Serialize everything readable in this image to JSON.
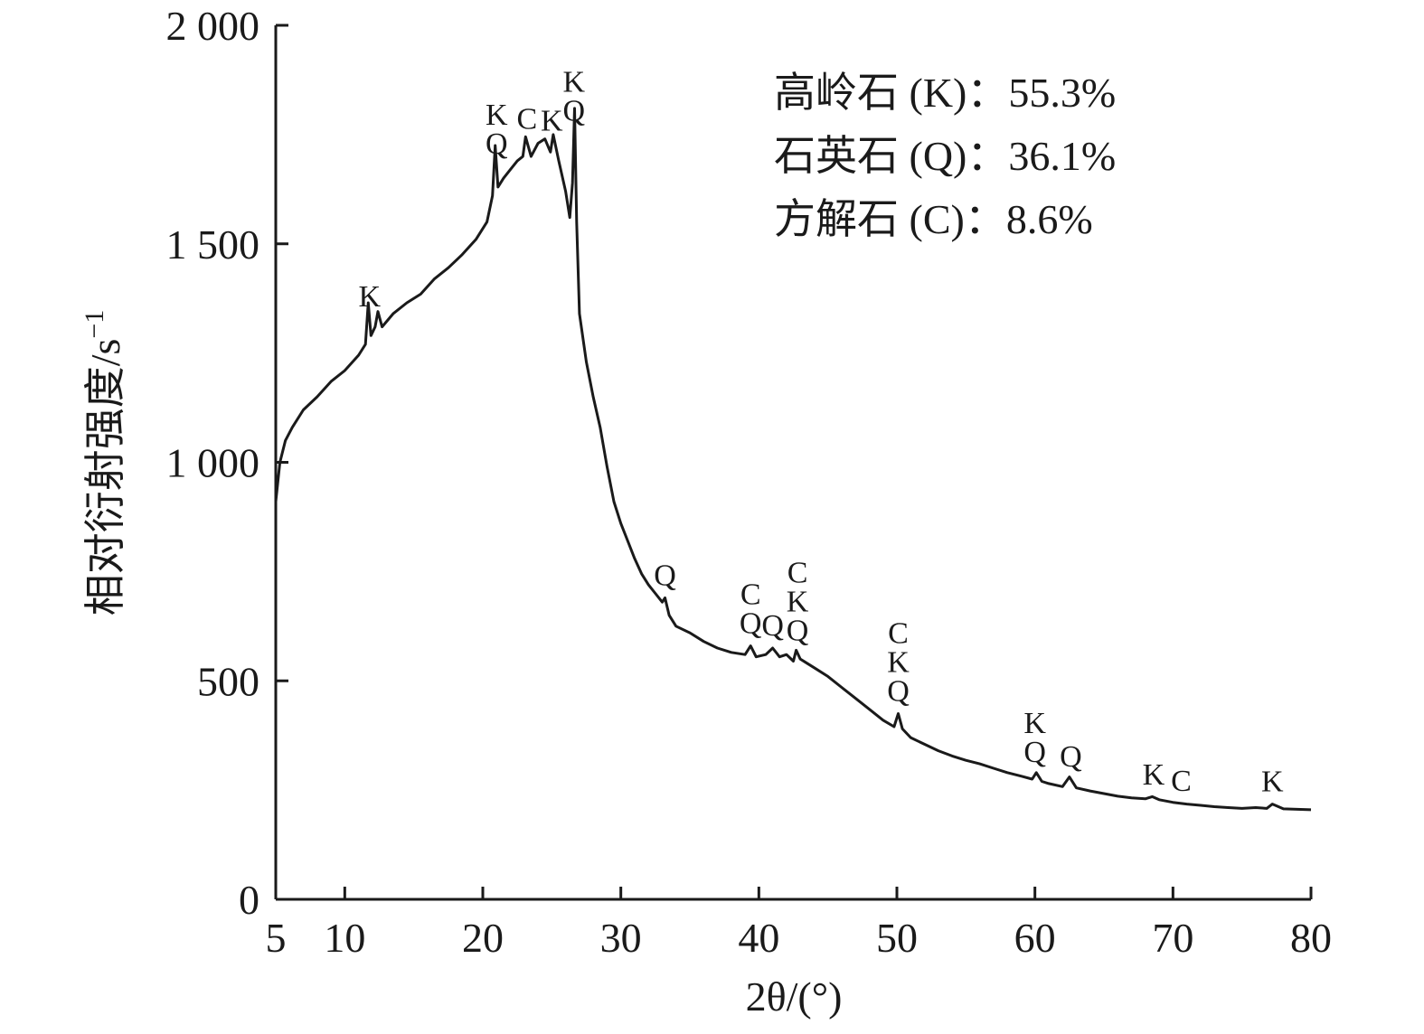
{
  "chart_data": {
    "type": "line",
    "xlabel": "2θ/(°)",
    "ylabel_main": "相对衍射强度/s",
    "ylabel_sup": "−1",
    "xlim": [
      5,
      80
    ],
    "ylim": [
      0,
      2000
    ],
    "x_ticks": [
      {
        "value": 5,
        "label": "5"
      },
      {
        "value": 10,
        "label": "10"
      },
      {
        "value": 20,
        "label": "20"
      },
      {
        "value": 30,
        "label": "30"
      },
      {
        "value": 40,
        "label": "40"
      },
      {
        "value": 50,
        "label": "50"
      },
      {
        "value": 60,
        "label": "60"
      },
      {
        "value": 70,
        "label": "70"
      },
      {
        "value": 80,
        "label": "80"
      }
    ],
    "y_ticks": [
      {
        "value": 0,
        "label": "0"
      },
      {
        "value": 500,
        "label": "500"
      },
      {
        "value": 1000,
        "label": "1 000"
      },
      {
        "value": 1500,
        "label": "1 500"
      },
      {
        "value": 2000,
        "label": "2 000"
      }
    ],
    "grid": false,
    "legend_position": "top-right",
    "composition": [
      "高岭石 (K)：55.3%",
      "石英石 (Q)：36.1%",
      "方解石 (C)：8.6%"
    ],
    "series": [
      {
        "color": "#1a1a1a",
        "x": [
          5.0,
          5.3,
          5.7,
          6.2,
          7.0,
          8.0,
          9.0,
          10.0,
          11.0,
          11.5,
          11.7,
          11.9,
          12.2,
          12.4,
          12.7,
          13.5,
          14.5,
          15.5,
          16.5,
          17.5,
          18.5,
          19.5,
          20.3,
          20.7,
          20.9,
          21.1,
          21.5,
          22.0,
          22.5,
          22.9,
          23.1,
          23.5,
          24.0,
          24.5,
          24.9,
          25.1,
          25.5,
          26.0,
          26.3,
          26.5,
          26.65,
          26.8,
          27.0,
          27.5,
          28.0,
          28.5,
          29.0,
          29.5,
          30.0,
          30.5,
          31.0,
          31.5,
          32.0,
          32.5,
          33.0,
          33.2,
          33.5,
          34.0,
          35.0,
          36.0,
          37.0,
          38.0,
          39.0,
          39.4,
          39.8,
          40.5,
          41.0,
          41.5,
          42.0,
          42.5,
          42.7,
          43.0,
          44.0,
          45.0,
          46.0,
          47.0,
          48.0,
          49.0,
          49.8,
          50.1,
          50.4,
          51.0,
          52.0,
          53.0,
          54.0,
          55.0,
          56.0,
          57.0,
          58.0,
          59.0,
          59.8,
          60.1,
          60.5,
          61.0,
          62.0,
          62.5,
          63.0,
          64.0,
          65.0,
          66.0,
          67.0,
          68.0,
          68.5,
          69.0,
          70.0,
          71.0,
          72.0,
          73.0,
          74.0,
          75.0,
          76.0,
          76.8,
          77.2,
          78.0,
          79.0,
          80.0
        ],
        "y": [
          910,
          1000,
          1050,
          1080,
          1120,
          1150,
          1185,
          1210,
          1245,
          1270,
          1365,
          1290,
          1310,
          1345,
          1310,
          1340,
          1365,
          1385,
          1420,
          1445,
          1475,
          1510,
          1550,
          1610,
          1725,
          1630,
          1650,
          1670,
          1690,
          1700,
          1745,
          1700,
          1730,
          1740,
          1710,
          1750,
          1690,
          1620,
          1560,
          1640,
          1810,
          1550,
          1340,
          1230,
          1150,
          1080,
          990,
          910,
          860,
          820,
          780,
          745,
          720,
          700,
          680,
          690,
          650,
          625,
          610,
          590,
          575,
          565,
          560,
          580,
          555,
          560,
          575,
          555,
          560,
          545,
          570,
          550,
          530,
          510,
          485,
          460,
          435,
          410,
          395,
          425,
          390,
          370,
          355,
          340,
          328,
          318,
          310,
          300,
          290,
          282,
          275,
          290,
          270,
          265,
          258,
          280,
          255,
          248,
          242,
          236,
          232,
          230,
          235,
          228,
          222,
          218,
          215,
          212,
          210,
          208,
          210,
          208,
          218,
          207,
          206,
          205
        ]
      }
    ],
    "peak_annotations": [
      {
        "x": 11.8,
        "lines": [
          "K"
        ]
      },
      {
        "x": 21.0,
        "lines": [
          "K",
          "Q"
        ]
      },
      {
        "x": 23.2,
        "lines": [
          "C"
        ]
      },
      {
        "x": 25.0,
        "lines": [
          "K"
        ]
      },
      {
        "x": 26.6,
        "lines": [
          "K",
          "Q"
        ]
      },
      {
        "x": 33.2,
        "lines": [
          "Q"
        ]
      },
      {
        "x": 39.4,
        "lines": [
          "C",
          "Q"
        ]
      },
      {
        "x": 41.0,
        "lines": [
          "Q"
        ]
      },
      {
        "x": 42.8,
        "lines": [
          "C",
          "K",
          "Q"
        ]
      },
      {
        "x": 50.1,
        "lines": [
          "C",
          "K",
          "Q"
        ]
      },
      {
        "x": 60.0,
        "lines": [
          "K",
          "Q"
        ]
      },
      {
        "x": 62.6,
        "lines": [
          "Q"
        ]
      },
      {
        "x": 68.6,
        "lines": [
          "K"
        ]
      },
      {
        "x": 70.6,
        "lines": [
          "C"
        ]
      },
      {
        "x": 77.2,
        "lines": [
          "K"
        ]
      }
    ]
  }
}
